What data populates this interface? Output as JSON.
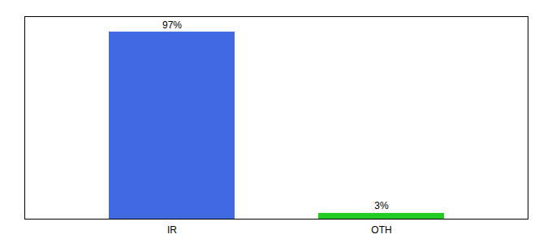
{
  "chart_data": {
    "type": "bar",
    "categories": [
      "IR",
      "OTH"
    ],
    "values": [
      97,
      3
    ],
    "value_labels": [
      "97%",
      "3%"
    ],
    "colors": [
      "#4169e1",
      "#22cc22"
    ],
    "ylim": [
      0,
      105
    ],
    "yticks": [],
    "tick_labels": "x",
    "data_labels": true
  }
}
